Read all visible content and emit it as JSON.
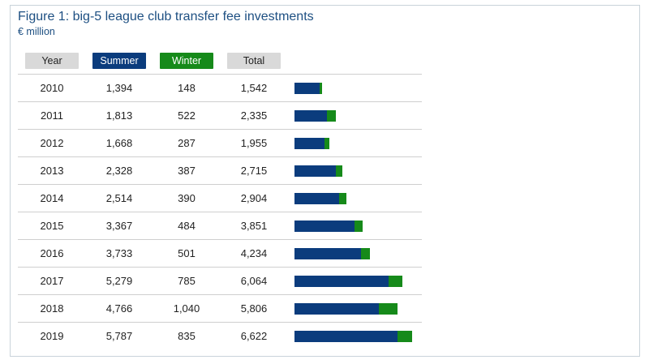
{
  "title": "Figure 1: big-5 league club transfer fee investments",
  "subtitle": "€ million",
  "headers": {
    "year": "Year",
    "summer": "Summer",
    "winter": "Winter",
    "total": "Total"
  },
  "colors": {
    "summer": "#0b3c7d",
    "winter": "#168a1a",
    "header_grey": "#d9d9d9",
    "title": "#1d4f82"
  },
  "chart_data": {
    "type": "table",
    "bar_type": "stacked-bar",
    "columns": [
      "Year",
      "Summer",
      "Winter",
      "Total"
    ],
    "series": [
      {
        "name": "Summer",
        "values": [
          1394,
          1813,
          1668,
          2328,
          2514,
          3367,
          3733,
          5279,
          4766,
          5787
        ]
      },
      {
        "name": "Winter",
        "values": [
          148,
          522,
          287,
          387,
          390,
          484,
          501,
          785,
          1040,
          835
        ]
      }
    ],
    "rows": [
      {
        "year": "2010",
        "summer": "1,394",
        "winter": "148",
        "total": "1,542",
        "summer_value": 1394,
        "winter_value": 148
      },
      {
        "year": "2011",
        "summer": "1,813",
        "winter": "522",
        "total": "2,335",
        "summer_value": 1813,
        "winter_value": 522
      },
      {
        "year": "2012",
        "summer": "1,668",
        "winter": "287",
        "total": "1,955",
        "summer_value": 1668,
        "winter_value": 287
      },
      {
        "year": "2013",
        "summer": "2,328",
        "winter": "387",
        "total": "2,715",
        "summer_value": 2328,
        "winter_value": 387
      },
      {
        "year": "2014",
        "summer": "2,514",
        "winter": "390",
        "total": "2,904",
        "summer_value": 2514,
        "winter_value": 390
      },
      {
        "year": "2015",
        "summer": "3,367",
        "winter": "484",
        "total": "3,851",
        "summer_value": 3367,
        "winter_value": 484
      },
      {
        "year": "2016",
        "summer": "3,733",
        "winter": "501",
        "total": "4,234",
        "summer_value": 3733,
        "winter_value": 501
      },
      {
        "year": "2017",
        "summer": "5,279",
        "winter": "785",
        "total": "6,064",
        "summer_value": 5279,
        "winter_value": 785
      },
      {
        "year": "2018",
        "summer": "4,766",
        "winter": "1,040",
        "total": "5,806",
        "summer_value": 4766,
        "winter_value": 1040
      },
      {
        "year": "2019",
        "summer": "5,787",
        "winter": "835",
        "total": "6,622",
        "summer_value": 5787,
        "winter_value": 835
      }
    ]
  }
}
